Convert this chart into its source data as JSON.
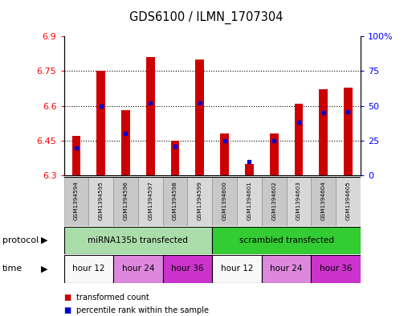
{
  "title": "GDS6100 / ILMN_1707304",
  "samples": [
    "GSM1394594",
    "GSM1394595",
    "GSM1394596",
    "GSM1394597",
    "GSM1394598",
    "GSM1394599",
    "GSM1394600",
    "GSM1394601",
    "GSM1394602",
    "GSM1394603",
    "GSM1394604",
    "GSM1394605"
  ],
  "red_values": [
    6.47,
    6.75,
    6.58,
    6.81,
    6.45,
    6.8,
    6.48,
    6.35,
    6.48,
    6.61,
    6.67,
    6.68
  ],
  "blue_percentiles": [
    20,
    50,
    30,
    52,
    21,
    52,
    25,
    10,
    25,
    38,
    45,
    46
  ],
  "y_min": 6.3,
  "y_max": 6.9,
  "y_ticks": [
    6.3,
    6.45,
    6.6,
    6.75,
    6.9
  ],
  "right_y_ticks": [
    0,
    25,
    50,
    75,
    100
  ],
  "right_y_labels": [
    "0",
    "25",
    "50",
    "75",
    "100%"
  ],
  "bar_color": "#cc0000",
  "blue_color": "#0000cc",
  "plot_bg": "#ffffff",
  "protocol_label": "protocol",
  "time_label": "time",
  "protocols": [
    {
      "label": "miRNA135b transfected",
      "start": 0,
      "end": 6,
      "color": "#aaddaa"
    },
    {
      "label": "scrambled transfected",
      "start": 6,
      "end": 12,
      "color": "#33cc33"
    }
  ],
  "times": [
    {
      "label": "hour 12",
      "start": 0,
      "end": 2,
      "color": "#f8f8f8"
    },
    {
      "label": "hour 24",
      "start": 2,
      "end": 4,
      "color": "#dd88dd"
    },
    {
      "label": "hour 36",
      "start": 4,
      "end": 6,
      "color": "#cc33cc"
    },
    {
      "label": "hour 12",
      "start": 6,
      "end": 8,
      "color": "#f8f8f8"
    },
    {
      "label": "hour 24",
      "start": 8,
      "end": 10,
      "color": "#dd88dd"
    },
    {
      "label": "hour 36",
      "start": 10,
      "end": 12,
      "color": "#cc33cc"
    }
  ],
  "legend_red": "transformed count",
  "legend_blue": "percentile rank within the sample",
  "figsize": [
    5.13,
    3.93
  ],
  "dpi": 100
}
